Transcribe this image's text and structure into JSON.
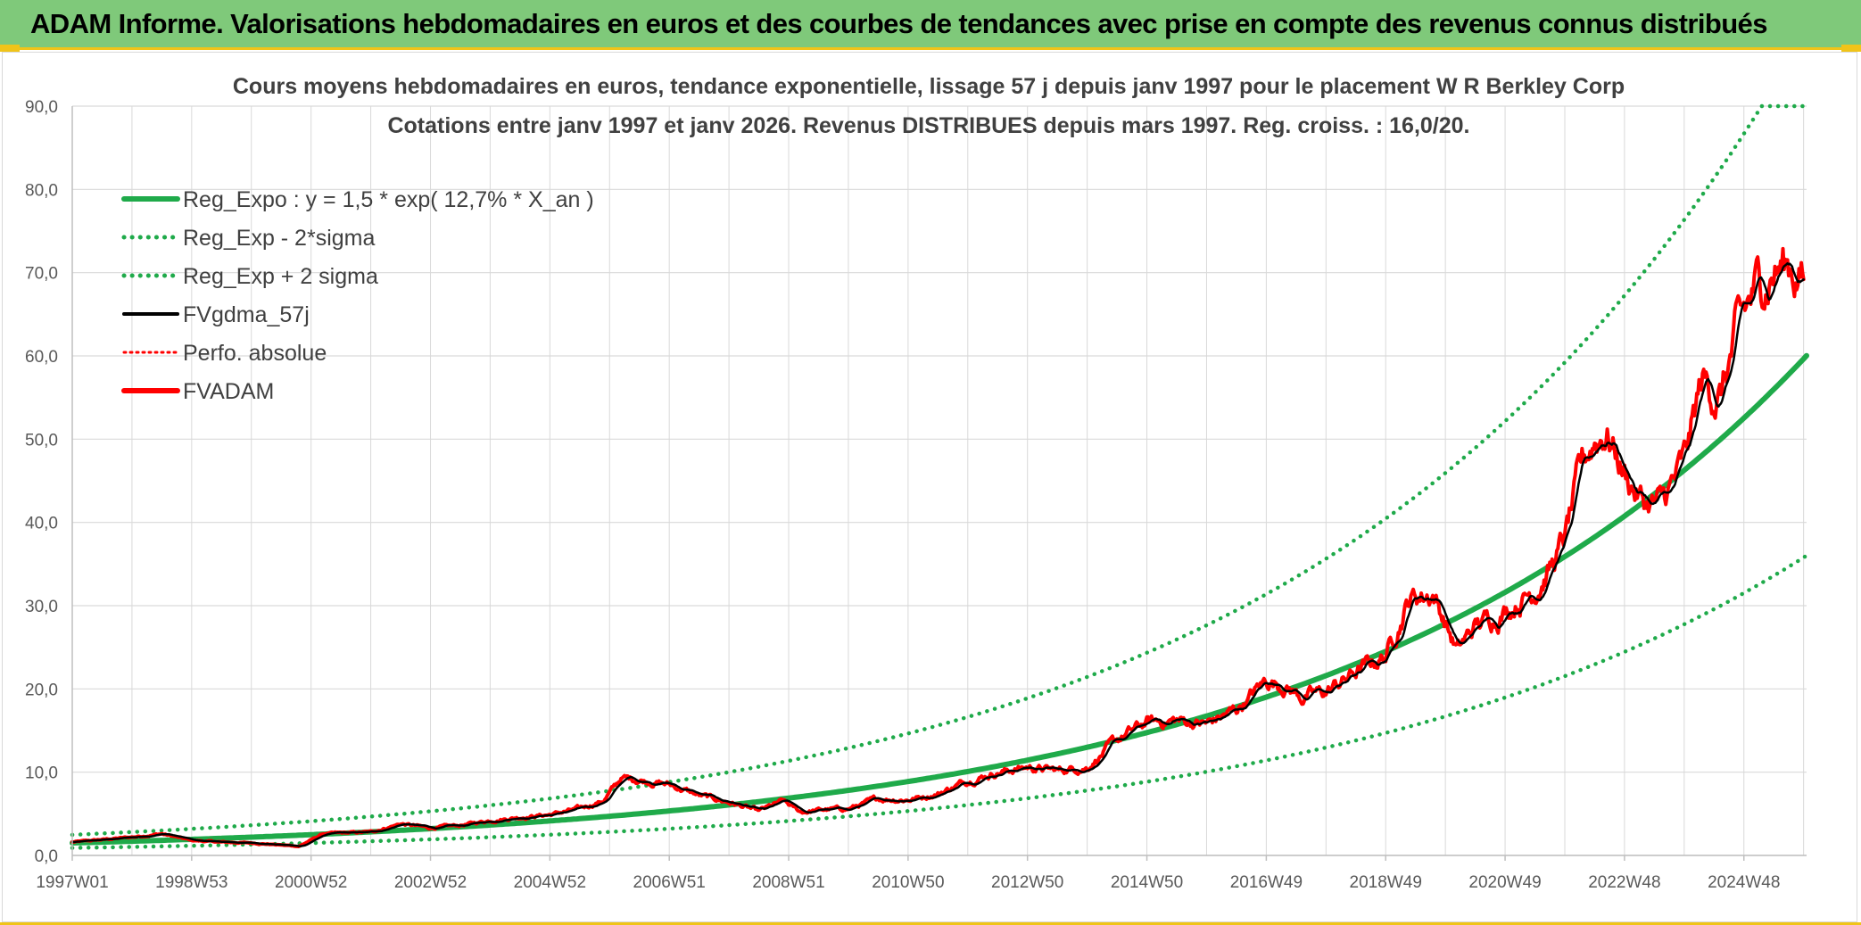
{
  "banner": {
    "title": "ADAM Informe. Valorisations hebdomadaires en euros et des courbes de tendances avec prise en compte des revenus connus distribués"
  },
  "colors": {
    "banner_bg": "#7fc97a",
    "accent": "#f0c419",
    "reg_expo": "#1faa4a",
    "bands": "#1faa4a",
    "fvgdma": "#000000",
    "perfo": "#ff0000",
    "fvadam": "#ff0000",
    "grid": "#d9d9d9"
  },
  "chart_data": {
    "type": "line",
    "title_lines": [
      "Cours moyens hebdomadaires en euros, tendance exponentielle, lissage 57 j depuis janv 1997 pour le placement W R Berkley Corp",
      "Cotations entre janv 1997 et janv 2026. Revenus DISTRIBUES depuis mars 1997. Reg. croiss. : 16,0/20."
    ],
    "xlabel": "",
    "ylabel": "",
    "xlim": [
      1997.0,
      2026.05
    ],
    "ylim": [
      0,
      90
    ],
    "y_ticks": [
      "0,0",
      "10,0",
      "20,0",
      "30,0",
      "40,0",
      "50,0",
      "60,0",
      "70,0",
      "80,0",
      "90,0"
    ],
    "y_tick_values": [
      0,
      10,
      20,
      30,
      40,
      50,
      60,
      70,
      80,
      90
    ],
    "x_tick_labels": [
      "1997W01",
      "1998W53",
      "2000W52",
      "2002W52",
      "2004W52",
      "2006W51",
      "2008W51",
      "2010W50",
      "2012W50",
      "2014W50",
      "2016W49",
      "2018W49",
      "2020W49",
      "2022W48",
      "2024W48"
    ],
    "x_tick_years": [
      1997.0,
      1999.0,
      2001.0,
      2003.0,
      2005.0,
      2007.0,
      2009.0,
      2011.0,
      2013.0,
      2015.0,
      2017.0,
      2019.0,
      2021.0,
      2023.0,
      2025.0
    ],
    "grid": true,
    "legend_position": "top-left",
    "regression": {
      "a": 1.5,
      "rate": 0.127,
      "band_factor_low": 0.6,
      "band_factor_high": 1.65
    },
    "series": [
      {
        "name": "Reg_Expo : y = 1,5 * exp( 12,7% *  X_an )",
        "style": "solid-thick",
        "color": "#1faa4a",
        "kind": "reg"
      },
      {
        "name": "Reg_Exp - 2*sigma",
        "style": "dotted",
        "color": "#1faa4a",
        "kind": "low"
      },
      {
        "name": "Reg_Exp + 2 sigma",
        "style": "dotted",
        "color": "#1faa4a",
        "kind": "high"
      },
      {
        "name": "FVgdma_57j",
        "style": "solid",
        "color": "#000000",
        "kind": "smooth"
      },
      {
        "name": "Perfo. absolue",
        "style": "dotted-thin",
        "color": "#ff0000",
        "kind": "perfo"
      },
      {
        "name": "FVADAM",
        "style": "solid-thick",
        "color": "#ff0000",
        "kind": "price"
      }
    ],
    "price_anchors": {
      "x": [
        1997.0,
        1997.5,
        1998.0,
        1998.5,
        1999.0,
        1999.5,
        2000.0,
        2000.4,
        2000.8,
        2001.2,
        2002.0,
        2002.5,
        2003.0,
        2003.5,
        2004.0,
        2004.5,
        2005.0,
        2005.5,
        2005.9,
        2006.2,
        2006.6,
        2007.0,
        2007.5,
        2008.0,
        2008.5,
        2008.9,
        2009.2,
        2009.6,
        2010.0,
        2010.5,
        2011.0,
        2011.5,
        2012.0,
        2012.5,
        2013.0,
        2013.5,
        2014.0,
        2014.5,
        2015.0,
        2015.5,
        2016.0,
        2016.5,
        2017.0,
        2017.3,
        2017.6,
        2018.0,
        2018.5,
        2019.0,
        2019.4,
        2019.8,
        2020.0,
        2020.2,
        2020.5,
        2021.0,
        2021.5,
        2021.8,
        2022.0,
        2022.3,
        2022.5,
        2022.7,
        2023.0,
        2023.3,
        2023.6,
        2024.0,
        2024.3,
        2024.6,
        2024.9,
        2025.2,
        2025.5,
        2025.8,
        2026.0
      ],
      "y": [
        1.6,
        1.9,
        2.2,
        2.6,
        1.8,
        1.6,
        1.5,
        1.3,
        1.1,
        2.6,
        2.8,
        3.8,
        3.3,
        3.6,
        4.2,
        4.6,
        4.9,
        5.6,
        6.6,
        9.3,
        9.0,
        8.5,
        7.2,
        6.4,
        5.3,
        6.5,
        5.2,
        5.5,
        5.6,
        6.8,
        6.7,
        7.4,
        9.0,
        10.0,
        10.6,
        10.2,
        10.6,
        13.8,
        16.0,
        16.2,
        15.8,
        17.5,
        21.0,
        20.5,
        19.0,
        19.6,
        22.0,
        24.0,
        31.0,
        31.5,
        28.0,
        24.5,
        27.5,
        29.5,
        32.0,
        35.0,
        38.0,
        47.0,
        50.0,
        51.0,
        46.0,
        42.5,
        42.0,
        47.0,
        57.0,
        55.0,
        63.0,
        68.0,
        70.5,
        71.0,
        69.0
      ]
    }
  },
  "legend": {
    "items": [
      "Reg_Expo : y = 1,5 * exp( 12,7% *  X_an )",
      "Reg_Exp - 2*sigma",
      "Reg_Exp + 2 sigma",
      "FVgdma_57j",
      "Perfo. absolue",
      "FVADAM"
    ]
  }
}
